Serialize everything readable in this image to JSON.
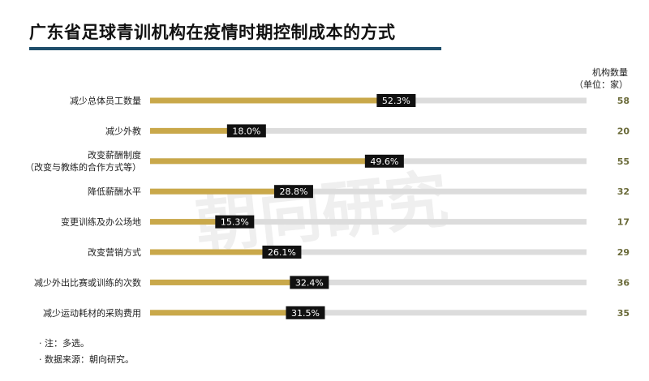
{
  "title": "广东省足球青训机构在疫情时期控制成本的方式",
  "watermark": "朝向研究",
  "count_header_line1": "机构数量",
  "count_header_line2": "（单位：家）",
  "notes": [
    "· 注：多选。",
    "· 数据来源：朝向研究。"
  ],
  "colors": {
    "bar": "#c9a84a",
    "track": "#dcdcdc",
    "label_bg": "#111111",
    "label_fg": "#ffffff",
    "count": "#6b6b3a"
  },
  "chart_data": {
    "type": "bar",
    "orientation": "horizontal",
    "categories": [
      [
        "减少总体员工数量"
      ],
      [
        "减少外教"
      ],
      [
        "改变薪酬制度",
        "（改变与教练的合作方式等）"
      ],
      [
        "降低薪酬水平"
      ],
      [
        "变更训练及办公场地"
      ],
      [
        "改变营销方式"
      ],
      [
        "减少外出比赛或训练的次数"
      ],
      [
        "减少运动耗材的采购费用"
      ]
    ],
    "values": [
      52.3,
      18.0,
      49.6,
      28.8,
      15.3,
      26.1,
      32.4,
      31.5
    ],
    "value_labels": [
      "52.3%",
      "18.0%",
      "49.6%",
      "28.8%",
      "15.3%",
      "26.1%",
      "32.4%",
      "31.5%"
    ],
    "counts": [
      "58",
      "20",
      "55",
      "32",
      "17",
      "29",
      "36",
      "35"
    ],
    "xlim": [
      0,
      100
    ]
  }
}
